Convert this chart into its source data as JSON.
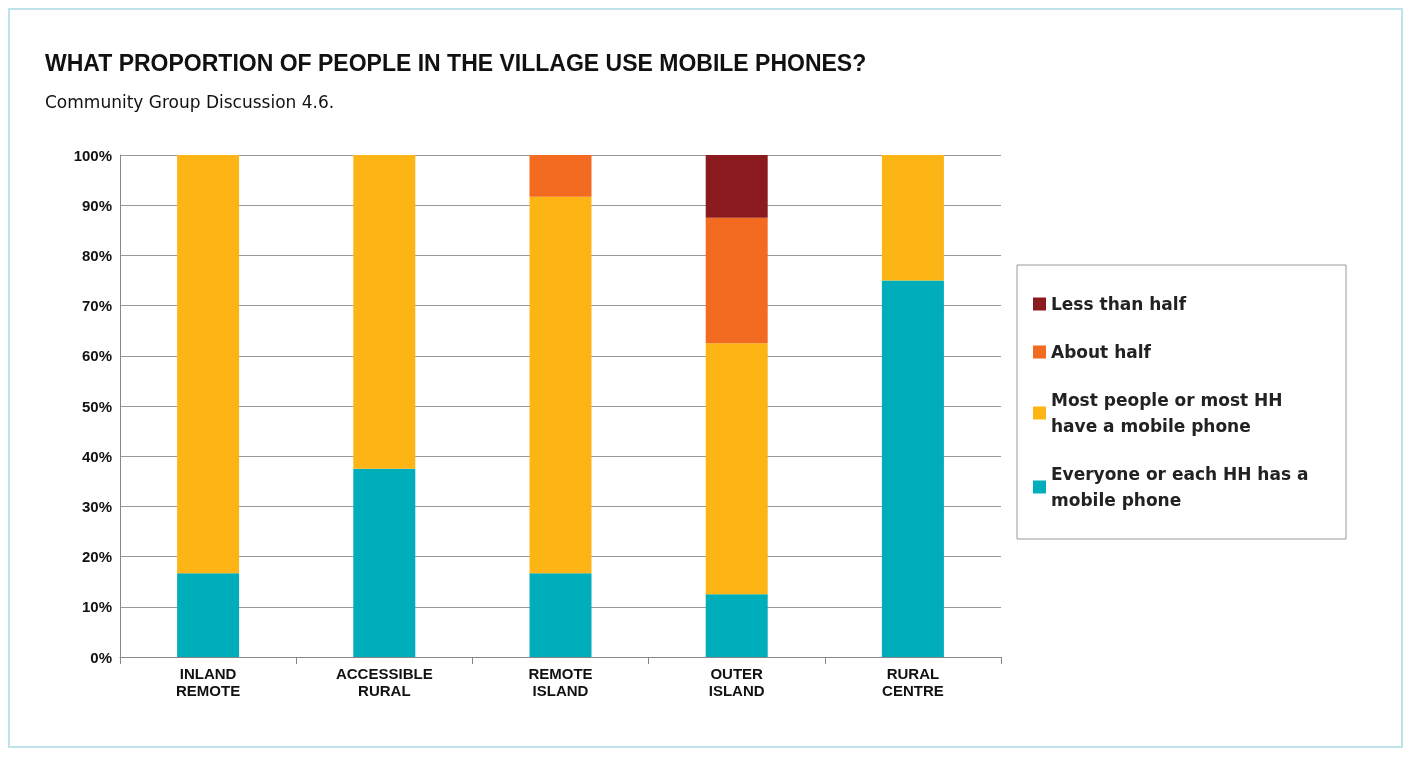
{
  "chart_data": {
    "type": "bar",
    "title": "WHAT PROPORTION OF PEOPLE IN THE VILLAGE USE MOBILE PHONES?",
    "subtitle": "Community Group Discussion 4.6.",
    "categories": [
      "INLAND\nREMOTE",
      "ACCESSIBLE\nRURAL",
      "REMOTE\nISLAND",
      "OUTER\nISLAND",
      "RURAL\nCENTRE"
    ],
    "stacked": true,
    "series": [
      {
        "name": "Everyone or each HH has a mobile phone",
        "color": "#00adbb",
        "values": [
          16.7,
          37.5,
          16.7,
          12.5,
          75
        ]
      },
      {
        "name": "Most people or most HH have a mobile phone",
        "color": "#fdb515",
        "values": [
          83.3,
          62.5,
          75,
          50,
          25
        ]
      },
      {
        "name": "About half",
        "color": "#f26b21",
        "values": [
          0,
          0,
          8.3,
          25,
          0
        ]
      },
      {
        "name": "Less than half",
        "color": "#8b1a1e",
        "values": [
          0,
          0,
          0,
          12.5,
          0
        ]
      }
    ],
    "ylim": [
      0,
      100
    ],
    "yticks": [
      {
        "value": 0,
        "label": "0%"
      },
      {
        "value": 10,
        "label": "10%"
      },
      {
        "value": 20,
        "label": "20%"
      },
      {
        "value": 30,
        "label": "30%"
      },
      {
        "value": 40,
        "label": "40%"
      },
      {
        "value": 50,
        "label": "50%"
      },
      {
        "value": 60,
        "label": "60%"
      },
      {
        "value": 70,
        "label": "70%"
      },
      {
        "value": 80,
        "label": "80%"
      },
      {
        "value": 90,
        "label": "90%"
      },
      {
        "value": 100,
        "label": "100%"
      }
    ],
    "grid": "y",
    "legend": "right"
  }
}
